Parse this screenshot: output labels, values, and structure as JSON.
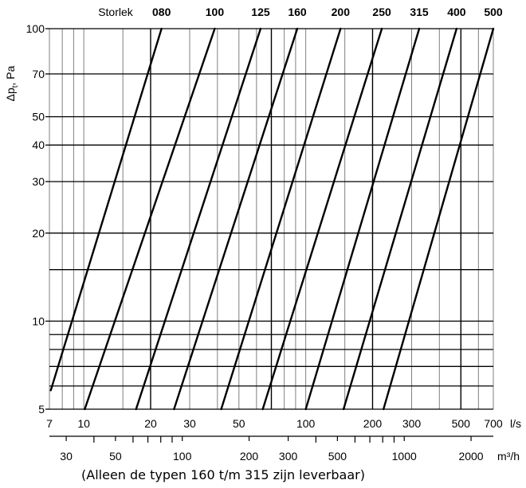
{
  "chart_data": {
    "type": "line",
    "title": "",
    "ylabel_main": "Δp",
    "ylabel_sub": "t",
    "ylabel_unit": ", Pa",
    "size_header": "Storlek",
    "x_unit_primary": "l/s",
    "x_unit_secondary": "m³/h",
    "y_scale": "log",
    "x_scale": "log",
    "xlim": [
      7,
      700
    ],
    "ylim": [
      5,
      100
    ],
    "grid": true,
    "y_ticks": [
      {
        "value": 5,
        "label": "5"
      },
      {
        "value": 10,
        "label": "10"
      },
      {
        "value": 20,
        "label": "20"
      },
      {
        "value": 30,
        "label": "30"
      },
      {
        "value": 40,
        "label": "40"
      },
      {
        "value": 50,
        "label": "50"
      },
      {
        "value": 70,
        "label": "70"
      },
      {
        "value": 100,
        "label": "100"
      }
    ],
    "y_gridlines": [
      5,
      6,
      7,
      8,
      9,
      10,
      15,
      20,
      30,
      40,
      50,
      70,
      100
    ],
    "x_ticks": [
      {
        "value": 7,
        "label": "7"
      },
      {
        "value": 10,
        "label": "10"
      },
      {
        "value": 20,
        "label": "20"
      },
      {
        "value": 30,
        "label": "30"
      },
      {
        "value": 50,
        "label": "50"
      },
      {
        "value": 100,
        "label": "100"
      },
      {
        "value": 200,
        "label": "200"
      },
      {
        "value": 300,
        "label": "300"
      },
      {
        "value": 500,
        "label": "500"
      },
      {
        "value": 700,
        "label": "700"
      }
    ],
    "x_gridlines": [
      7,
      8,
      9,
      10,
      15,
      20,
      30,
      40,
      50,
      60,
      70,
      80,
      90,
      100,
      150,
      200,
      300,
      400,
      500,
      600,
      700
    ],
    "x_major_gridlines": [
      20,
      70,
      200,
      500
    ],
    "x2_ticks": [
      {
        "value": 30,
        "label": "30"
      },
      {
        "value": 50,
        "label": "50"
      },
      {
        "value": 100,
        "label": "100"
      },
      {
        "value": 200,
        "label": "200"
      },
      {
        "value": 300,
        "label": "300"
      },
      {
        "value": 500,
        "label": "500"
      },
      {
        "value": 1000,
        "label": "1000"
      },
      {
        "value": 2000,
        "label": "2000"
      }
    ],
    "x2_minor_ticks": [
      40,
      60,
      70,
      80,
      90,
      400,
      600,
      700,
      800,
      900
    ],
    "series": [
      {
        "name": "080",
        "points": [
          [
            7.1,
            5.8
          ],
          [
            22.4,
            100
          ]
        ]
      },
      {
        "name": "100",
        "points": [
          [
            10.1,
            5.0
          ],
          [
            38.9,
            100
          ]
        ]
      },
      {
        "name": "125",
        "points": [
          [
            17.2,
            5.0
          ],
          [
            62.6,
            100
          ]
        ]
      },
      {
        "name": "160",
        "points": [
          [
            25.5,
            5.0
          ],
          [
            91.6,
            100
          ]
        ]
      },
      {
        "name": "200",
        "points": [
          [
            41.6,
            5.0
          ],
          [
            143.5,
            100
          ]
        ]
      },
      {
        "name": "250",
        "points": [
          [
            64.0,
            5.0
          ],
          [
            220.2,
            100
          ]
        ]
      },
      {
        "name": "315",
        "points": [
          [
            100.0,
            5.0
          ],
          [
            324.5,
            100
          ]
        ]
      },
      {
        "name": "400",
        "points": [
          [
            148.0,
            5.0
          ],
          [
            478.2,
            100
          ]
        ]
      },
      {
        "name": "500",
        "points": [
          [
            224.0,
            5.0
          ],
          [
            700.0,
            100
          ]
        ]
      }
    ]
  },
  "footnote": "(Alleen de typen 160 t/m 315 zijn leverbaar)",
  "colors": {
    "line": "#000000",
    "grid": "#808080",
    "grid_major": "#000000"
  }
}
